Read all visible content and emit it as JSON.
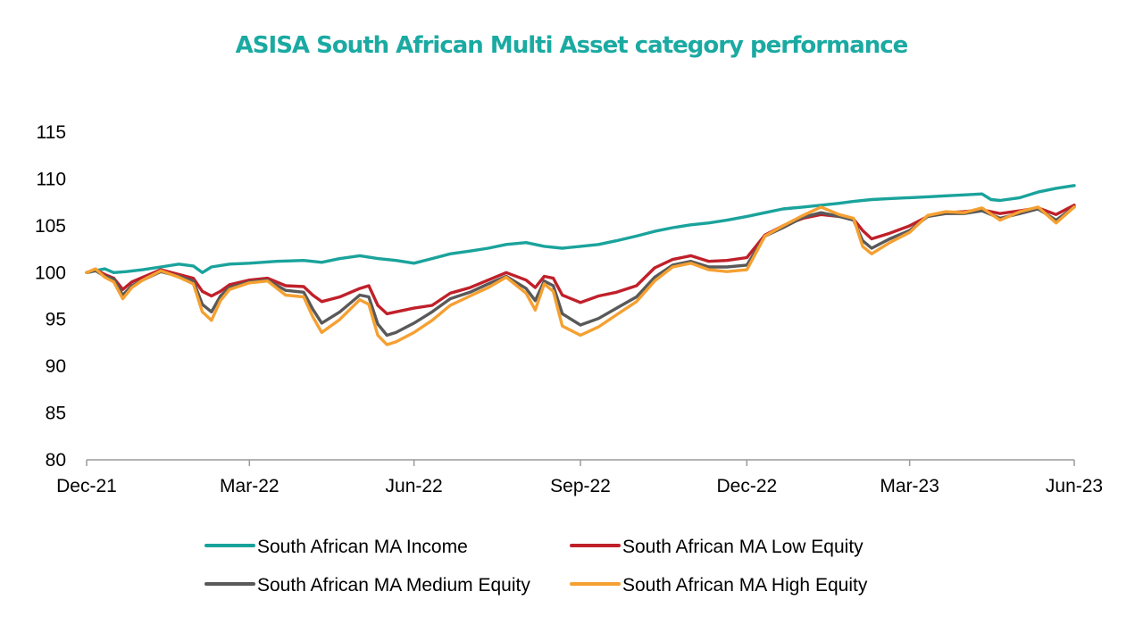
{
  "chart_data": {
    "type": "line",
    "title": "ASISA South African Multi Asset category performance",
    "xlabel": "",
    "ylabel": "",
    "ylim": [
      80,
      115
    ],
    "y_ticks": [
      "80",
      "85",
      "90",
      "95",
      "100",
      "105",
      "110",
      "115"
    ],
    "x_range": [
      "2021-12-31",
      "2023-06-30"
    ],
    "x_ticks": [
      {
        "date": "2021-12-31",
        "label": "Dec-21"
      },
      {
        "date": "2022-03-31",
        "label": "Mar-22"
      },
      {
        "date": "2022-06-30",
        "label": "Jun-22"
      },
      {
        "date": "2022-09-30",
        "label": "Sep-22"
      },
      {
        "date": "2022-12-31",
        "label": "Dec-22"
      },
      {
        "date": "2023-03-31",
        "label": "Mar-23"
      },
      {
        "date": "2023-06-30",
        "label": "Jun-23"
      }
    ],
    "grid": false,
    "legend_position": "bottom",
    "series": [
      {
        "name": "South African MA Income",
        "color": "#1aa39c",
        "points": [
          [
            "2021-12-31",
            100.0
          ],
          [
            "2022-01-05",
            100.2
          ],
          [
            "2022-01-10",
            100.4
          ],
          [
            "2022-01-15",
            100.0
          ],
          [
            "2022-01-22",
            100.1
          ],
          [
            "2022-01-31",
            100.3
          ],
          [
            "2022-02-10",
            100.6
          ],
          [
            "2022-02-20",
            100.9
          ],
          [
            "2022-02-28",
            100.7
          ],
          [
            "2022-03-05",
            100.0
          ],
          [
            "2022-03-10",
            100.6
          ],
          [
            "2022-03-20",
            100.9
          ],
          [
            "2022-03-31",
            101.0
          ],
          [
            "2022-04-15",
            101.2
          ],
          [
            "2022-04-30",
            101.3
          ],
          [
            "2022-05-10",
            101.1
          ],
          [
            "2022-05-20",
            101.5
          ],
          [
            "2022-05-31",
            101.8
          ],
          [
            "2022-06-10",
            101.5
          ],
          [
            "2022-06-20",
            101.3
          ],
          [
            "2022-06-30",
            101.0
          ],
          [
            "2022-07-10",
            101.5
          ],
          [
            "2022-07-20",
            102.0
          ],
          [
            "2022-07-31",
            102.3
          ],
          [
            "2022-08-10",
            102.6
          ],
          [
            "2022-08-20",
            103.0
          ],
          [
            "2022-08-31",
            103.2
          ],
          [
            "2022-09-10",
            102.8
          ],
          [
            "2022-09-20",
            102.6
          ],
          [
            "2022-09-30",
            102.8
          ],
          [
            "2022-10-10",
            103.0
          ],
          [
            "2022-10-20",
            103.4
          ],
          [
            "2022-10-31",
            103.9
          ],
          [
            "2022-11-10",
            104.4
          ],
          [
            "2022-11-20",
            104.8
          ],
          [
            "2022-11-30",
            105.1
          ],
          [
            "2022-12-10",
            105.3
          ],
          [
            "2022-12-20",
            105.6
          ],
          [
            "2022-12-31",
            106.0
          ],
          [
            "2023-01-10",
            106.4
          ],
          [
            "2023-01-20",
            106.8
          ],
          [
            "2023-01-31",
            107.0
          ],
          [
            "2023-02-10",
            107.2
          ],
          [
            "2023-02-20",
            107.4
          ],
          [
            "2023-02-28",
            107.6
          ],
          [
            "2023-03-10",
            107.8
          ],
          [
            "2023-03-20",
            107.9
          ],
          [
            "2023-03-31",
            108.0
          ],
          [
            "2023-04-10",
            108.1
          ],
          [
            "2023-04-20",
            108.2
          ],
          [
            "2023-04-30",
            108.3
          ],
          [
            "2023-05-10",
            108.4
          ],
          [
            "2023-05-15",
            107.8
          ],
          [
            "2023-05-20",
            107.7
          ],
          [
            "2023-05-31",
            108.0
          ],
          [
            "2023-06-10",
            108.6
          ],
          [
            "2023-06-20",
            109.0
          ],
          [
            "2023-06-30",
            109.3
          ]
        ]
      },
      {
        "name": "South African MA Low Equity",
        "color": "#c0202a",
        "points": [
          [
            "2021-12-31",
            100.0
          ],
          [
            "2022-01-05",
            100.3
          ],
          [
            "2022-01-10",
            99.8
          ],
          [
            "2022-01-15",
            99.4
          ],
          [
            "2022-01-20",
            98.2
          ],
          [
            "2022-01-25",
            99.0
          ],
          [
            "2022-01-31",
            99.5
          ],
          [
            "2022-02-10",
            100.3
          ],
          [
            "2022-02-20",
            99.8
          ],
          [
            "2022-02-28",
            99.4
          ],
          [
            "2022-03-05",
            98.0
          ],
          [
            "2022-03-10",
            97.5
          ],
          [
            "2022-03-15",
            98.0
          ],
          [
            "2022-03-20",
            98.7
          ],
          [
            "2022-03-31",
            99.2
          ],
          [
            "2022-04-10",
            99.4
          ],
          [
            "2022-04-20",
            98.6
          ],
          [
            "2022-04-30",
            98.5
          ],
          [
            "2022-05-05",
            97.6
          ],
          [
            "2022-05-10",
            96.9
          ],
          [
            "2022-05-20",
            97.4
          ],
          [
            "2022-05-31",
            98.3
          ],
          [
            "2022-06-05",
            98.6
          ],
          [
            "2022-06-10",
            96.5
          ],
          [
            "2022-06-15",
            95.6
          ],
          [
            "2022-06-20",
            95.8
          ],
          [
            "2022-06-30",
            96.2
          ],
          [
            "2022-07-10",
            96.5
          ],
          [
            "2022-07-20",
            97.8
          ],
          [
            "2022-07-31",
            98.4
          ],
          [
            "2022-08-10",
            99.2
          ],
          [
            "2022-08-20",
            100.0
          ],
          [
            "2022-08-31",
            99.2
          ],
          [
            "2022-09-05",
            98.4
          ],
          [
            "2022-09-10",
            99.6
          ],
          [
            "2022-09-15",
            99.4
          ],
          [
            "2022-09-20",
            97.6
          ],
          [
            "2022-09-30",
            96.8
          ],
          [
            "2022-10-10",
            97.5
          ],
          [
            "2022-10-20",
            97.9
          ],
          [
            "2022-10-31",
            98.6
          ],
          [
            "2022-11-10",
            100.5
          ],
          [
            "2022-11-20",
            101.4
          ],
          [
            "2022-11-30",
            101.8
          ],
          [
            "2022-12-10",
            101.2
          ],
          [
            "2022-12-20",
            101.3
          ],
          [
            "2022-12-31",
            101.6
          ],
          [
            "2023-01-10",
            104.0
          ],
          [
            "2023-01-20",
            105.0
          ],
          [
            "2023-01-31",
            105.8
          ],
          [
            "2023-02-10",
            106.2
          ],
          [
            "2023-02-20",
            106.0
          ],
          [
            "2023-02-28",
            105.7
          ],
          [
            "2023-03-05",
            104.5
          ],
          [
            "2023-03-10",
            103.6
          ],
          [
            "2023-03-20",
            104.2
          ],
          [
            "2023-03-31",
            105.0
          ],
          [
            "2023-04-10",
            106.0
          ],
          [
            "2023-04-20",
            106.4
          ],
          [
            "2023-04-30",
            106.5
          ],
          [
            "2023-05-10",
            106.7
          ],
          [
            "2023-05-20",
            106.3
          ],
          [
            "2023-05-31",
            106.6
          ],
          [
            "2023-06-10",
            106.9
          ],
          [
            "2023-06-20",
            106.2
          ],
          [
            "2023-06-30",
            107.2
          ]
        ]
      },
      {
        "name": "South African MA Medium Equity",
        "color": "#595959",
        "points": [
          [
            "2021-12-31",
            100.0
          ],
          [
            "2022-01-05",
            100.2
          ],
          [
            "2022-01-10",
            99.6
          ],
          [
            "2022-01-15",
            99.3
          ],
          [
            "2022-01-20",
            97.6
          ],
          [
            "2022-01-25",
            98.6
          ],
          [
            "2022-01-31",
            99.2
          ],
          [
            "2022-02-10",
            100.1
          ],
          [
            "2022-02-20",
            99.6
          ],
          [
            "2022-02-28",
            99.1
          ],
          [
            "2022-03-05",
            96.6
          ],
          [
            "2022-03-10",
            95.8
          ],
          [
            "2022-03-15",
            97.5
          ],
          [
            "2022-03-20",
            98.4
          ],
          [
            "2022-03-31",
            99.0
          ],
          [
            "2022-04-10",
            99.2
          ],
          [
            "2022-04-20",
            98.1
          ],
          [
            "2022-04-30",
            97.9
          ],
          [
            "2022-05-05",
            96.1
          ],
          [
            "2022-05-10",
            94.6
          ],
          [
            "2022-05-20",
            95.8
          ],
          [
            "2022-05-31",
            97.6
          ],
          [
            "2022-06-05",
            97.4
          ],
          [
            "2022-06-10",
            94.5
          ],
          [
            "2022-06-15",
            93.3
          ],
          [
            "2022-06-20",
            93.6
          ],
          [
            "2022-06-30",
            94.6
          ],
          [
            "2022-07-10",
            95.8
          ],
          [
            "2022-07-20",
            97.2
          ],
          [
            "2022-07-31",
            97.9
          ],
          [
            "2022-08-10",
            98.8
          ],
          [
            "2022-08-20",
            99.6
          ],
          [
            "2022-08-31",
            98.3
          ],
          [
            "2022-09-05",
            97.0
          ],
          [
            "2022-09-10",
            99.1
          ],
          [
            "2022-09-15",
            98.6
          ],
          [
            "2022-09-20",
            95.6
          ],
          [
            "2022-09-30",
            94.4
          ],
          [
            "2022-10-10",
            95.1
          ],
          [
            "2022-10-20",
            96.2
          ],
          [
            "2022-10-31",
            97.4
          ],
          [
            "2022-11-10",
            99.5
          ],
          [
            "2022-11-20",
            100.8
          ],
          [
            "2022-11-30",
            101.2
          ],
          [
            "2022-12-10",
            100.6
          ],
          [
            "2022-12-20",
            100.6
          ],
          [
            "2022-12-31",
            100.8
          ],
          [
            "2023-01-10",
            103.9
          ],
          [
            "2023-01-20",
            104.8
          ],
          [
            "2023-01-31",
            105.9
          ],
          [
            "2023-02-10",
            106.4
          ],
          [
            "2023-02-20",
            106.0
          ],
          [
            "2023-02-28",
            105.6
          ],
          [
            "2023-03-05",
            103.4
          ],
          [
            "2023-03-10",
            102.6
          ],
          [
            "2023-03-20",
            103.6
          ],
          [
            "2023-03-31",
            104.5
          ],
          [
            "2023-04-10",
            106.0
          ],
          [
            "2023-04-20",
            106.3
          ],
          [
            "2023-04-30",
            106.3
          ],
          [
            "2023-05-10",
            106.6
          ],
          [
            "2023-05-20",
            105.8
          ],
          [
            "2023-05-31",
            106.3
          ],
          [
            "2023-06-10",
            106.8
          ],
          [
            "2023-06-20",
            105.6
          ],
          [
            "2023-06-30",
            107.0
          ]
        ]
      },
      {
        "name": "South African MA High Equity",
        "color": "#f5a031",
        "points": [
          [
            "2021-12-31",
            100.0
          ],
          [
            "2022-01-05",
            100.4
          ],
          [
            "2022-01-10",
            99.5
          ],
          [
            "2022-01-15",
            99.0
          ],
          [
            "2022-01-20",
            97.2
          ],
          [
            "2022-01-25",
            98.4
          ],
          [
            "2022-01-31",
            99.2
          ],
          [
            "2022-02-10",
            100.2
          ],
          [
            "2022-02-20",
            99.5
          ],
          [
            "2022-02-28",
            98.8
          ],
          [
            "2022-03-05",
            95.8
          ],
          [
            "2022-03-10",
            94.9
          ],
          [
            "2022-03-15",
            97.0
          ],
          [
            "2022-03-20",
            98.2
          ],
          [
            "2022-03-31",
            98.9
          ],
          [
            "2022-04-10",
            99.1
          ],
          [
            "2022-04-20",
            97.6
          ],
          [
            "2022-04-30",
            97.4
          ],
          [
            "2022-05-05",
            95.3
          ],
          [
            "2022-05-10",
            93.6
          ],
          [
            "2022-05-20",
            95.0
          ],
          [
            "2022-05-31",
            97.1
          ],
          [
            "2022-06-05",
            96.6
          ],
          [
            "2022-06-10",
            93.3
          ],
          [
            "2022-06-15",
            92.3
          ],
          [
            "2022-06-20",
            92.6
          ],
          [
            "2022-06-30",
            93.6
          ],
          [
            "2022-07-10",
            94.9
          ],
          [
            "2022-07-20",
            96.5
          ],
          [
            "2022-07-31",
            97.5
          ],
          [
            "2022-08-10",
            98.4
          ],
          [
            "2022-08-20",
            99.5
          ],
          [
            "2022-08-31",
            97.8
          ],
          [
            "2022-09-05",
            96.0
          ],
          [
            "2022-09-10",
            98.8
          ],
          [
            "2022-09-15",
            98.0
          ],
          [
            "2022-09-20",
            94.3
          ],
          [
            "2022-09-30",
            93.3
          ],
          [
            "2022-10-10",
            94.2
          ],
          [
            "2022-10-20",
            95.5
          ],
          [
            "2022-10-31",
            96.9
          ],
          [
            "2022-11-10",
            99.1
          ],
          [
            "2022-11-20",
            100.6
          ],
          [
            "2022-11-30",
            101.0
          ],
          [
            "2022-12-10",
            100.3
          ],
          [
            "2022-12-20",
            100.1
          ],
          [
            "2022-12-31",
            100.3
          ],
          [
            "2023-01-10",
            103.9
          ],
          [
            "2023-01-20",
            105.0
          ],
          [
            "2023-01-31",
            106.1
          ],
          [
            "2023-02-10",
            107.0
          ],
          [
            "2023-02-20",
            106.2
          ],
          [
            "2023-02-28",
            105.8
          ],
          [
            "2023-03-05",
            102.8
          ],
          [
            "2023-03-10",
            102.0
          ],
          [
            "2023-03-20",
            103.2
          ],
          [
            "2023-03-31",
            104.3
          ],
          [
            "2023-04-10",
            106.1
          ],
          [
            "2023-04-20",
            106.5
          ],
          [
            "2023-04-30",
            106.4
          ],
          [
            "2023-05-10",
            106.9
          ],
          [
            "2023-05-20",
            105.6
          ],
          [
            "2023-05-31",
            106.5
          ],
          [
            "2023-06-10",
            107.0
          ],
          [
            "2023-06-20",
            105.3
          ],
          [
            "2023-06-30",
            107.0
          ]
        ]
      }
    ]
  }
}
